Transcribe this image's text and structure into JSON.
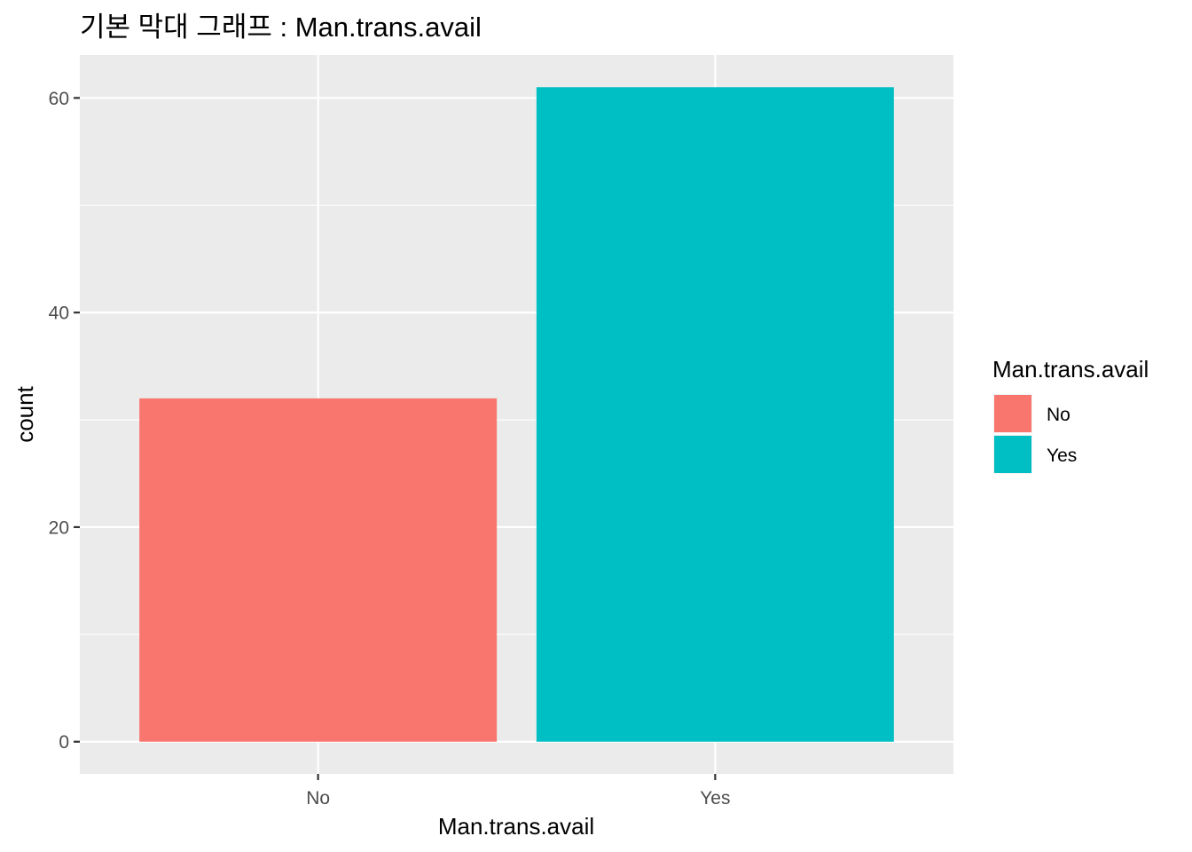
{
  "chart_data": {
    "type": "bar",
    "title": "기본 막대 그래프 : Man.trans.avail",
    "xlabel": "Man.trans.avail",
    "ylabel": "count",
    "categories": [
      "No",
      "Yes"
    ],
    "values": [
      32,
      61
    ],
    "ylim": [
      -3,
      64
    ],
    "yticks": [
      0,
      20,
      40,
      60
    ],
    "grid": true,
    "legend": {
      "title": "Man.trans.avail",
      "position": "right",
      "entries": [
        "No",
        "Yes"
      ]
    },
    "colors": {
      "No": "#F8766D",
      "Yes": "#00BFC4",
      "panel_background": "#EBEBEB",
      "grid": "#FFFFFF"
    }
  }
}
